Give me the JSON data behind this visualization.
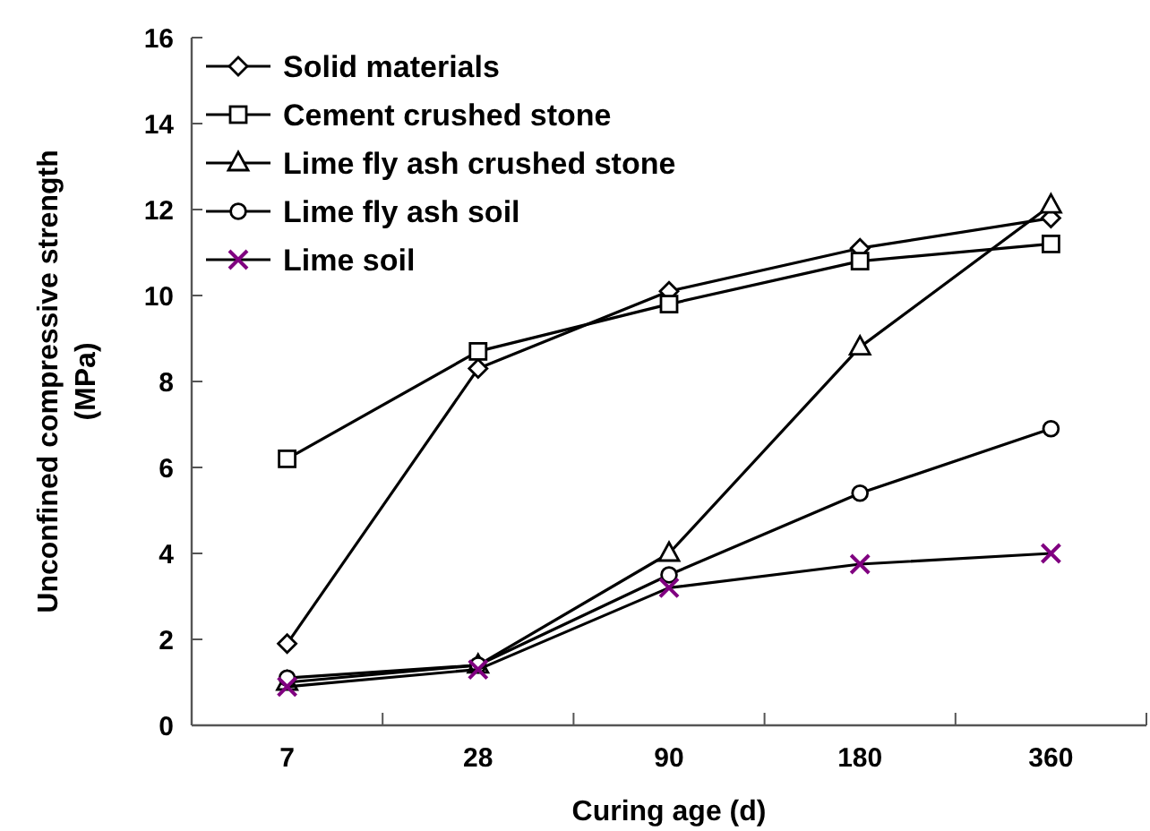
{
  "chart_data": {
    "type": "line",
    "xlabel": "Curing age (d)",
    "ylabel": "Unconfined compressive strength\n(MPa)",
    "categories": [
      "7",
      "28",
      "90",
      "180",
      "360"
    ],
    "ylim": [
      0,
      16
    ],
    "yticks": [
      0,
      2,
      4,
      6,
      8,
      10,
      12,
      14,
      16
    ],
    "grid": false,
    "legend": "top left",
    "line_style": "solid",
    "series": [
      {
        "name": "Solid materials",
        "color": "#000000",
        "marker": "diamond",
        "values": [
          1.9,
          8.3,
          10.1,
          11.1,
          11.8
        ]
      },
      {
        "name": "Cement crushed stone",
        "color": "#000000",
        "marker": "square",
        "values": [
          6.2,
          8.7,
          9.8,
          10.8,
          11.2
        ]
      },
      {
        "name": "Lime fly ash crushed stone",
        "color": "#000000",
        "marker": "triangle",
        "values": [
          1.0,
          1.4,
          4.0,
          8.8,
          12.1
        ]
      },
      {
        "name": "Lime fly ash soil",
        "color": "#000000",
        "marker": "circle",
        "values": [
          1.1,
          1.4,
          3.5,
          5.4,
          6.9
        ]
      },
      {
        "name": "Lime soil",
        "color": "#800080",
        "marker": "cross",
        "values": [
          0.9,
          1.3,
          3.2,
          3.75,
          4.0
        ]
      }
    ]
  }
}
